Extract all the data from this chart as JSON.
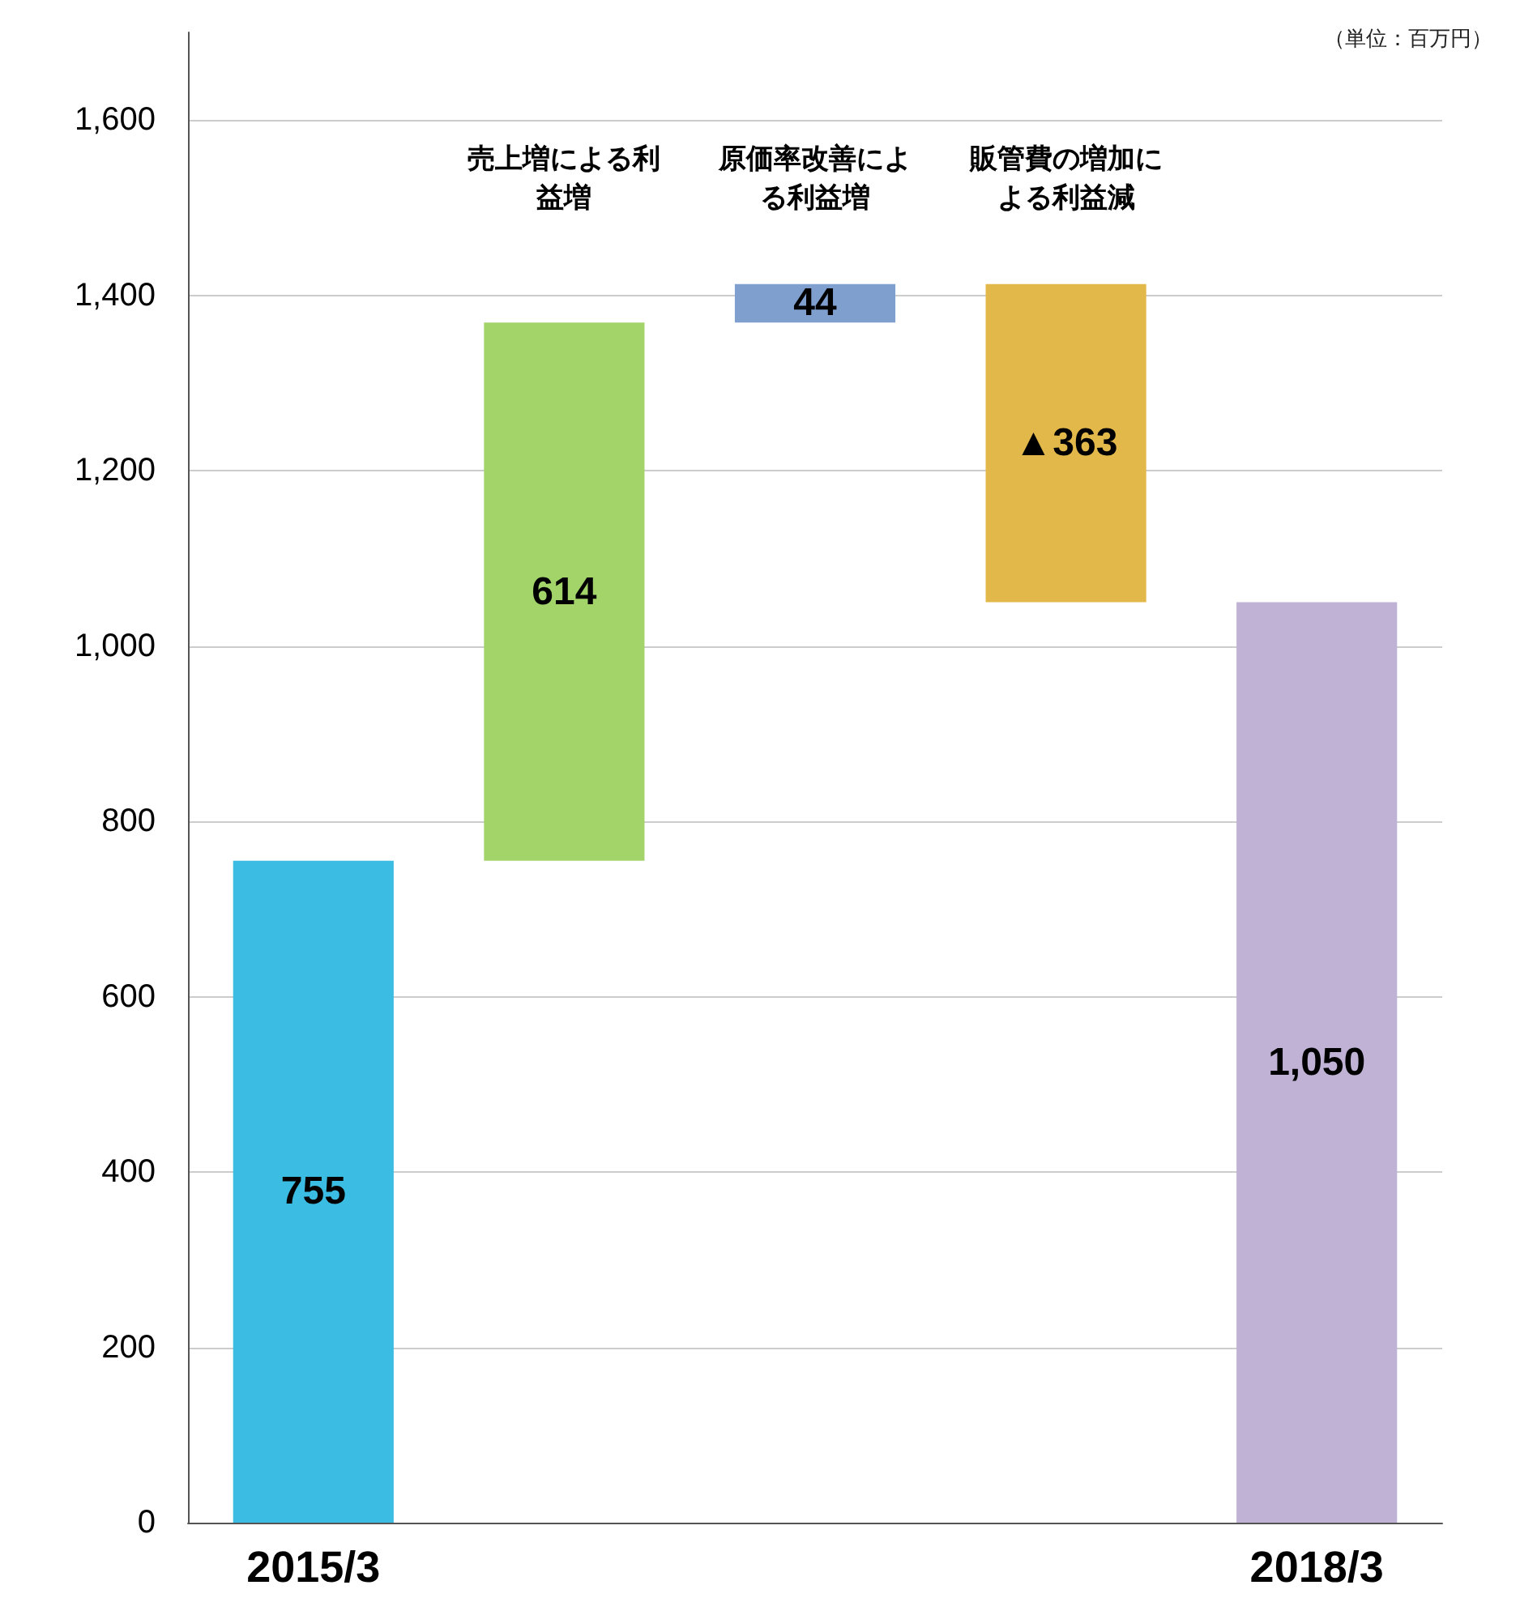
{
  "chart_data": {
    "type": "bar",
    "categories": [
      "2015/3",
      "売上増による利益増",
      "原価率改善による利益増",
      "販管費の増加による利益減",
      "2018/3"
    ],
    "values": [
      755,
      614,
      44,
      -363,
      1050
    ],
    "base": [
      0,
      755,
      1369,
      1413,
      0
    ],
    "colors": [
      "#3bbde3",
      "#a2d46a",
      "#7f9fcf",
      "#e3b84a",
      "#bfb2d5"
    ],
    "value_labels": [
      "755",
      "614",
      "44",
      "▲363",
      "1,050"
    ],
    "ylim": [
      0,
      1700
    ],
    "yticks": [
      0,
      200,
      400,
      600,
      800,
      {
        "value": 1000,
        "label": "1,000"
      },
      {
        "value": 1200,
        "label": "1,200"
      },
      {
        "value": 1400,
        "label": "1,400"
      },
      {
        "value": 1600,
        "label": "1,600"
      }
    ],
    "grid": "y",
    "annotations": [
      "（単位：百万円）"
    ]
  }
}
